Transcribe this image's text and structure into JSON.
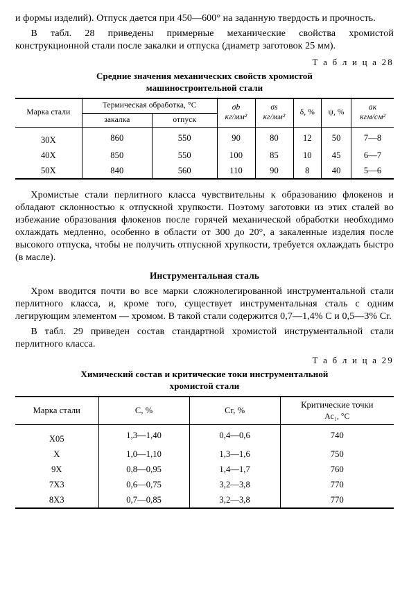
{
  "para1": "и формы изделий). Отпуск дается при 450—600°  на заданную твердость и прочность.",
  "para2": "В табл. 28 приведены примерные механические свойства хромистой конструкционной стали после закалки и отпуска (диаметр заготовок 25 мм).",
  "table28": {
    "label": "Т а б л и ц а   28",
    "title1": "Средние значения механических свойств хромистой",
    "title2": "машиностроительной стали",
    "headers": {
      "grade": "Марка стали",
      "thermal": "Термическая обработка, °С",
      "quench": "закалка",
      "temper": "отпуск",
      "sigma_b": "σb",
      "sigma_b_unit": "кг/мм²",
      "sigma_s": "σs",
      "sigma_s_unit": "кг/мм²",
      "delta": "δ, %",
      "psi": "ψ, %",
      "ak": "aк",
      "ak_unit": "кгм/см²"
    },
    "rows": [
      {
        "grade": "30Х",
        "q": "860",
        "t": "550",
        "sb": "90",
        "ss": "80",
        "d": "12",
        "p": "50",
        "a": "7—8"
      },
      {
        "grade": "40Х",
        "q": "850",
        "t": "550",
        "sb": "100",
        "ss": "85",
        "d": "10",
        "p": "45",
        "a": "6—7"
      },
      {
        "grade": "50Х",
        "q": "840",
        "t": "560",
        "sb": "110",
        "ss": "90",
        "d": "8",
        "p": "40",
        "a": "5—6"
      }
    ]
  },
  "para3": "Хромистые стали перлитного класса чувствительны к образованию флокенов и обладают склонностью к отпускной хрупкости. Поэтому заготовки из этих сталей во избежание образования флокенов после горячей механической обработки необходимо охлаждать медленно, особенно в области от 300 до 20°, а закаленные изделия после высокого отпуска, чтобы не получить отпускной хрупкости, требуется охлаждать быстро (в масле).",
  "subheading": "Инструментальная сталь",
  "para4a": "Хром вводится почти во все марки сложнолегированной инструментальной стали перлитного класса, и, кроме того, существует инструментальная сталь с одним легирующим элементом — хромом. В такой стали содержится 0,7—1,4% С и 0,5—3% Cr.",
  "para4b": "В табл. 29 приведен состав стандартной хромистой инструментальной стали перлитного класса.",
  "table29": {
    "label": "Т а б л и ц а   29",
    "title1": "Химический состав и критические токи инструментальной",
    "title2": "хромистой стали",
    "headers": {
      "grade": "Марка стали",
      "c": "C, %",
      "cr": "Cr, %",
      "crit": "Критические точки",
      "crit2": "Ac₁, °С"
    },
    "rows": [
      {
        "g": "Х05",
        "c": "1,3—1,40",
        "cr": "0,4—0,6",
        "k": "740"
      },
      {
        "g": "Х",
        "c": "1,0—1,10",
        "cr": "1,3—1,6",
        "k": "750"
      },
      {
        "g": "9Х",
        "c": "0,8—0,95",
        "cr": "1,4—1,7",
        "k": "760"
      },
      {
        "g": "7Х3",
        "c": "0,6—0,75",
        "cr": "3,2—3,8",
        "k": "770"
      },
      {
        "g": "8Х3",
        "c": "0,7—0,85",
        "cr": "3,2—3,8",
        "k": "770"
      }
    ]
  }
}
